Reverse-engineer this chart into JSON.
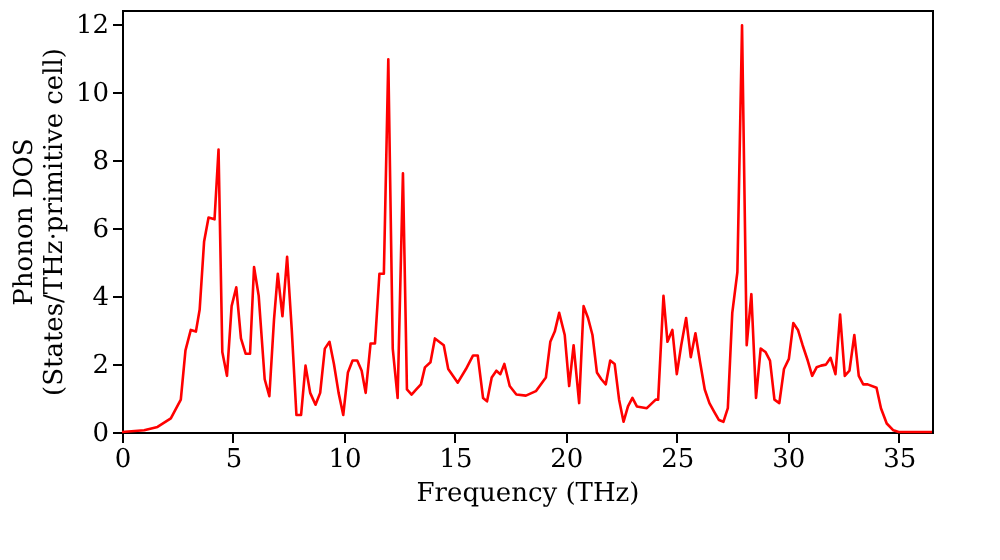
{
  "chart_data": {
    "type": "line",
    "xlabel": "Frequency (THz)",
    "ylabel": "Phonon DOS\n(States/THz·primitive cell)",
    "xlim": [
      0,
      36.5
    ],
    "xticks": [
      0,
      5,
      10,
      15,
      20,
      25,
      30,
      35
    ],
    "ylim": [
      0,
      12.4
    ],
    "yticks": [
      0,
      2,
      4,
      6,
      8,
      10,
      12
    ],
    "grid": false,
    "marker": "none",
    "line_style": "solid",
    "series": [
      {
        "color": "#ff0000",
        "x": [
          0,
          1,
          1.6,
          2.2,
          2.65,
          2.86,
          3.1,
          3.33,
          3.5,
          3.7,
          3.9,
          4.17,
          4.35,
          4.52,
          4.73,
          4.94,
          5.15,
          5.36,
          5.57,
          5.77,
          5.95,
          6.16,
          6.43,
          6.64,
          6.85,
          7.02,
          7.23,
          7.44,
          7.65,
          7.86,
          8.07,
          8.27,
          8.48,
          8.72,
          8.93,
          9.14,
          9.35,
          9.55,
          9.76,
          9.97,
          10.18,
          10.39,
          10.6,
          10.8,
          10.98,
          11.2,
          11.4,
          11.6,
          11.8,
          12.0,
          12.2,
          12.42,
          12.66,
          12.84,
          13.05,
          13.26,
          13.47,
          13.65,
          13.9,
          14.1,
          14.5,
          14.7,
          15.13,
          15.5,
          15.82,
          16.03,
          16.27,
          16.45,
          16.66,
          16.87,
          17.05,
          17.23,
          17.47,
          17.77,
          18.2,
          18.65,
          19.1,
          19.3,
          19.5,
          19.7,
          19.95,
          20.15,
          20.35,
          20.6,
          20.8,
          21.0,
          21.2,
          21.4,
          21.6,
          21.8,
          22.0,
          22.2,
          22.4,
          22.6,
          22.8,
          23.0,
          23.2,
          23.65,
          24.05,
          24.16,
          24.4,
          24.58,
          24.8,
          25.0,
          25.2,
          25.42,
          25.63,
          25.84,
          26.05,
          26.26,
          26.47,
          26.68,
          26.9,
          27.1,
          27.3,
          27.5,
          27.73,
          27.94,
          28.15,
          28.36,
          28.57,
          28.78,
          29.0,
          29.2,
          29.4,
          29.62,
          29.83,
          30.05,
          30.25,
          30.46,
          30.67,
          30.9,
          31.1,
          31.3,
          31.5,
          31.72,
          31.93,
          32.15,
          32.36,
          32.57,
          32.78,
          33.0,
          33.2,
          33.4,
          33.6,
          34.0,
          34.2,
          34.46,
          34.76,
          35.0,
          36.5
        ],
        "values": [
          0,
          0.05,
          0.15,
          0.4,
          0.95,
          2.4,
          3.0,
          2.95,
          3.6,
          5.6,
          6.3,
          6.25,
          8.3,
          2.35,
          1.65,
          3.7,
          4.25,
          2.75,
          2.3,
          2.3,
          4.85,
          4.0,
          1.55,
          1.05,
          3.3,
          4.65,
          3.4,
          5.15,
          3.0,
          0.5,
          0.5,
          1.95,
          1.15,
          0.8,
          1.15,
          2.45,
          2.65,
          2.0,
          1.15,
          0.5,
          1.75,
          2.1,
          2.1,
          1.8,
          1.15,
          2.6,
          2.6,
          4.65,
          4.65,
          10.95,
          2.45,
          1.0,
          7.6,
          1.25,
          1.1,
          1.25,
          1.4,
          1.9,
          2.05,
          2.75,
          2.55,
          1.85,
          1.45,
          1.85,
          2.25,
          2.25,
          1.0,
          0.9,
          1.6,
          1.8,
          1.7,
          2.0,
          1.35,
          1.1,
          1.07,
          1.2,
          1.6,
          2.65,
          2.95,
          3.5,
          2.85,
          1.35,
          2.55,
          0.85,
          3.7,
          3.35,
          2.85,
          1.75,
          1.55,
          1.4,
          2.1,
          2.0,
          0.95,
          0.3,
          0.75,
          1.0,
          0.75,
          0.7,
          0.95,
          0.95,
          4.0,
          2.65,
          3.0,
          1.7,
          2.55,
          3.35,
          2.2,
          2.9,
          2.05,
          1.25,
          0.85,
          0.6,
          0.35,
          0.3,
          0.7,
          3.5,
          4.7,
          11.95,
          2.55,
          4.05,
          1.0,
          2.45,
          2.35,
          2.1,
          0.95,
          0.85,
          1.85,
          2.15,
          3.2,
          3.0,
          2.55,
          2.1,
          1.65,
          1.9,
          1.95,
          1.98,
          2.18,
          1.7,
          3.45,
          1.65,
          1.8,
          2.85,
          1.65,
          1.4,
          1.4,
          1.3,
          0.7,
          0.25,
          0.05,
          0,
          0
        ]
      }
    ]
  }
}
